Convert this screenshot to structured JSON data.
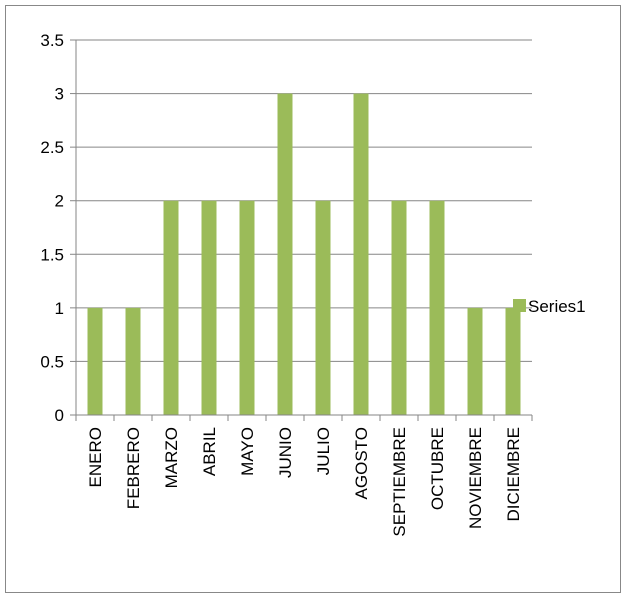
{
  "chart_data": {
    "type": "bar",
    "title": "",
    "xlabel": "",
    "ylabel": "",
    "categories": [
      "ENERO",
      "FEBRERO",
      "MARZO",
      "ABRIL",
      "MAYO",
      "JUNIO",
      "JULIO",
      "AGOSTO",
      "SEPTIEMBRE",
      "OCTUBRE",
      "NOVIEMBRE",
      "DICIEMBRE"
    ],
    "series": [
      {
        "name": "Series1",
        "values": [
          1,
          1,
          2,
          2,
          2,
          3,
          2,
          3,
          2,
          2,
          1,
          1
        ],
        "color": "#9bbb59"
      }
    ],
    "ylim": [
      0,
      3.5
    ],
    "yticks": [
      "0",
      "0.5",
      "1",
      "1.5",
      "2",
      "2.5",
      "3",
      "3.5"
    ],
    "grid": true,
    "gridline_color": "#868686",
    "legend_position": "right"
  }
}
